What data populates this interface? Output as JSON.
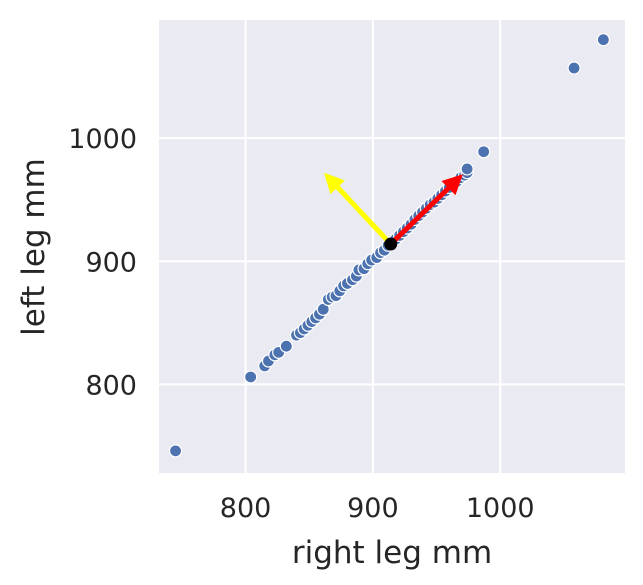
{
  "chart_data": {
    "type": "scatter",
    "xlabel": "right leg mm",
    "ylabel": "left leg mm",
    "xlim": [
      732,
      1098
    ],
    "ylim": [
      728,
      1096
    ],
    "xticks": [
      800,
      900,
      1000
    ],
    "yticks": [
      800,
      900,
      1000
    ],
    "grid": true,
    "background": "#eaeaf2",
    "grid_color": "#ffffff",
    "point_color": "#4c72b0",
    "points": [
      [
        745,
        746
      ],
      [
        804,
        806
      ],
      [
        815,
        815
      ],
      [
        818,
        819
      ],
      [
        823,
        824
      ],
      [
        826,
        826
      ],
      [
        832,
        831
      ],
      [
        840,
        840
      ],
      [
        843,
        842
      ],
      [
        846,
        845
      ],
      [
        849,
        848
      ],
      [
        852,
        851
      ],
      [
        855,
        854
      ],
      [
        858,
        857
      ],
      [
        861,
        861
      ],
      [
        865,
        869
      ],
      [
        868,
        871
      ],
      [
        871,
        872
      ],
      [
        874,
        876
      ],
      [
        877,
        880
      ],
      [
        880,
        882
      ],
      [
        884,
        885
      ],
      [
        887,
        888
      ],
      [
        889,
        893
      ],
      [
        893,
        894
      ],
      [
        896,
        898
      ],
      [
        899,
        901
      ],
      [
        903,
        903
      ],
      [
        906,
        907
      ],
      [
        909,
        909
      ],
      [
        912,
        913
      ],
      [
        915,
        915
      ],
      [
        918,
        918
      ],
      [
        921,
        921
      ],
      [
        924,
        924
      ],
      [
        927,
        927
      ],
      [
        930,
        930
      ],
      [
        933,
        934
      ],
      [
        936,
        937
      ],
      [
        939,
        940
      ],
      [
        942,
        943
      ],
      [
        945,
        946
      ],
      [
        948,
        948
      ],
      [
        951,
        951
      ],
      [
        954,
        954
      ],
      [
        957,
        957
      ],
      [
        960,
        960
      ],
      [
        963,
        963
      ],
      [
        966,
        965
      ],
      [
        969,
        968
      ],
      [
        972,
        970
      ],
      [
        974,
        972
      ],
      [
        974,
        975
      ],
      [
        987,
        989
      ],
      [
        1058,
        1057
      ],
      [
        1081,
        1080
      ]
    ],
    "mean_point": {
      "x": 914,
      "y": 914,
      "color": "#000000"
    },
    "arrows": [
      {
        "color": "#ffff00",
        "from": [
          914,
          914
        ],
        "to": [
          867,
          966
        ]
      },
      {
        "color": "#ff0000",
        "from": [
          914,
          914
        ],
        "to": [
          965,
          965
        ]
      }
    ]
  }
}
